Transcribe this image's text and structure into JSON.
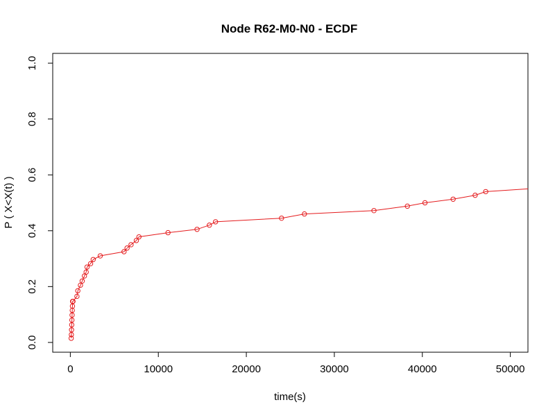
{
  "chart_data": {
    "type": "line",
    "title": "Node R62-M0-N0 - ECDF",
    "xlabel": "time(s)",
    "ylabel": "P ( X<X(t) )",
    "xlim": [
      -2000,
      52000
    ],
    "ylim": [
      -0.035,
      1.035
    ],
    "x_ticks": [
      0,
      10000,
      20000,
      30000,
      40000,
      50000
    ],
    "x_tick_labels": [
      "0",
      "10000",
      "20000",
      "30000",
      "40000",
      "50000"
    ],
    "y_ticks": [
      0.0,
      0.2,
      0.4,
      0.6,
      0.8,
      1.0
    ],
    "y_tick_labels": [
      "0.0",
      "0.2",
      "0.4",
      "0.6",
      "0.8",
      "1.0"
    ],
    "grid": false,
    "legend": "none",
    "color": "#e41a1c",
    "series": [
      {
        "x": [
          100,
          120,
          140,
          160,
          180,
          200,
          220,
          240,
          260,
          280,
          300,
          750,
          850,
          1150,
          1350,
          1600,
          1800,
          1900,
          2300,
          2600,
          3400,
          6100,
          6450,
          6900,
          7500,
          7800,
          11100,
          14400,
          15800,
          16500,
          24000,
          26600,
          34500,
          38300,
          40300,
          43500,
          46000,
          47200,
          53000
        ],
        "y": [
          0.015,
          0.028,
          0.045,
          0.063,
          0.08,
          0.098,
          0.115,
          0.13,
          0.147,
          0.147,
          0.147,
          0.165,
          0.185,
          0.205,
          0.22,
          0.238,
          0.252,
          0.27,
          0.282,
          0.297,
          0.31,
          0.325,
          0.338,
          0.35,
          0.365,
          0.378,
          0.393,
          0.405,
          0.42,
          0.432,
          0.445,
          0.46,
          0.472,
          0.488,
          0.5,
          0.513,
          0.527,
          0.54,
          0.552
        ]
      }
    ]
  }
}
